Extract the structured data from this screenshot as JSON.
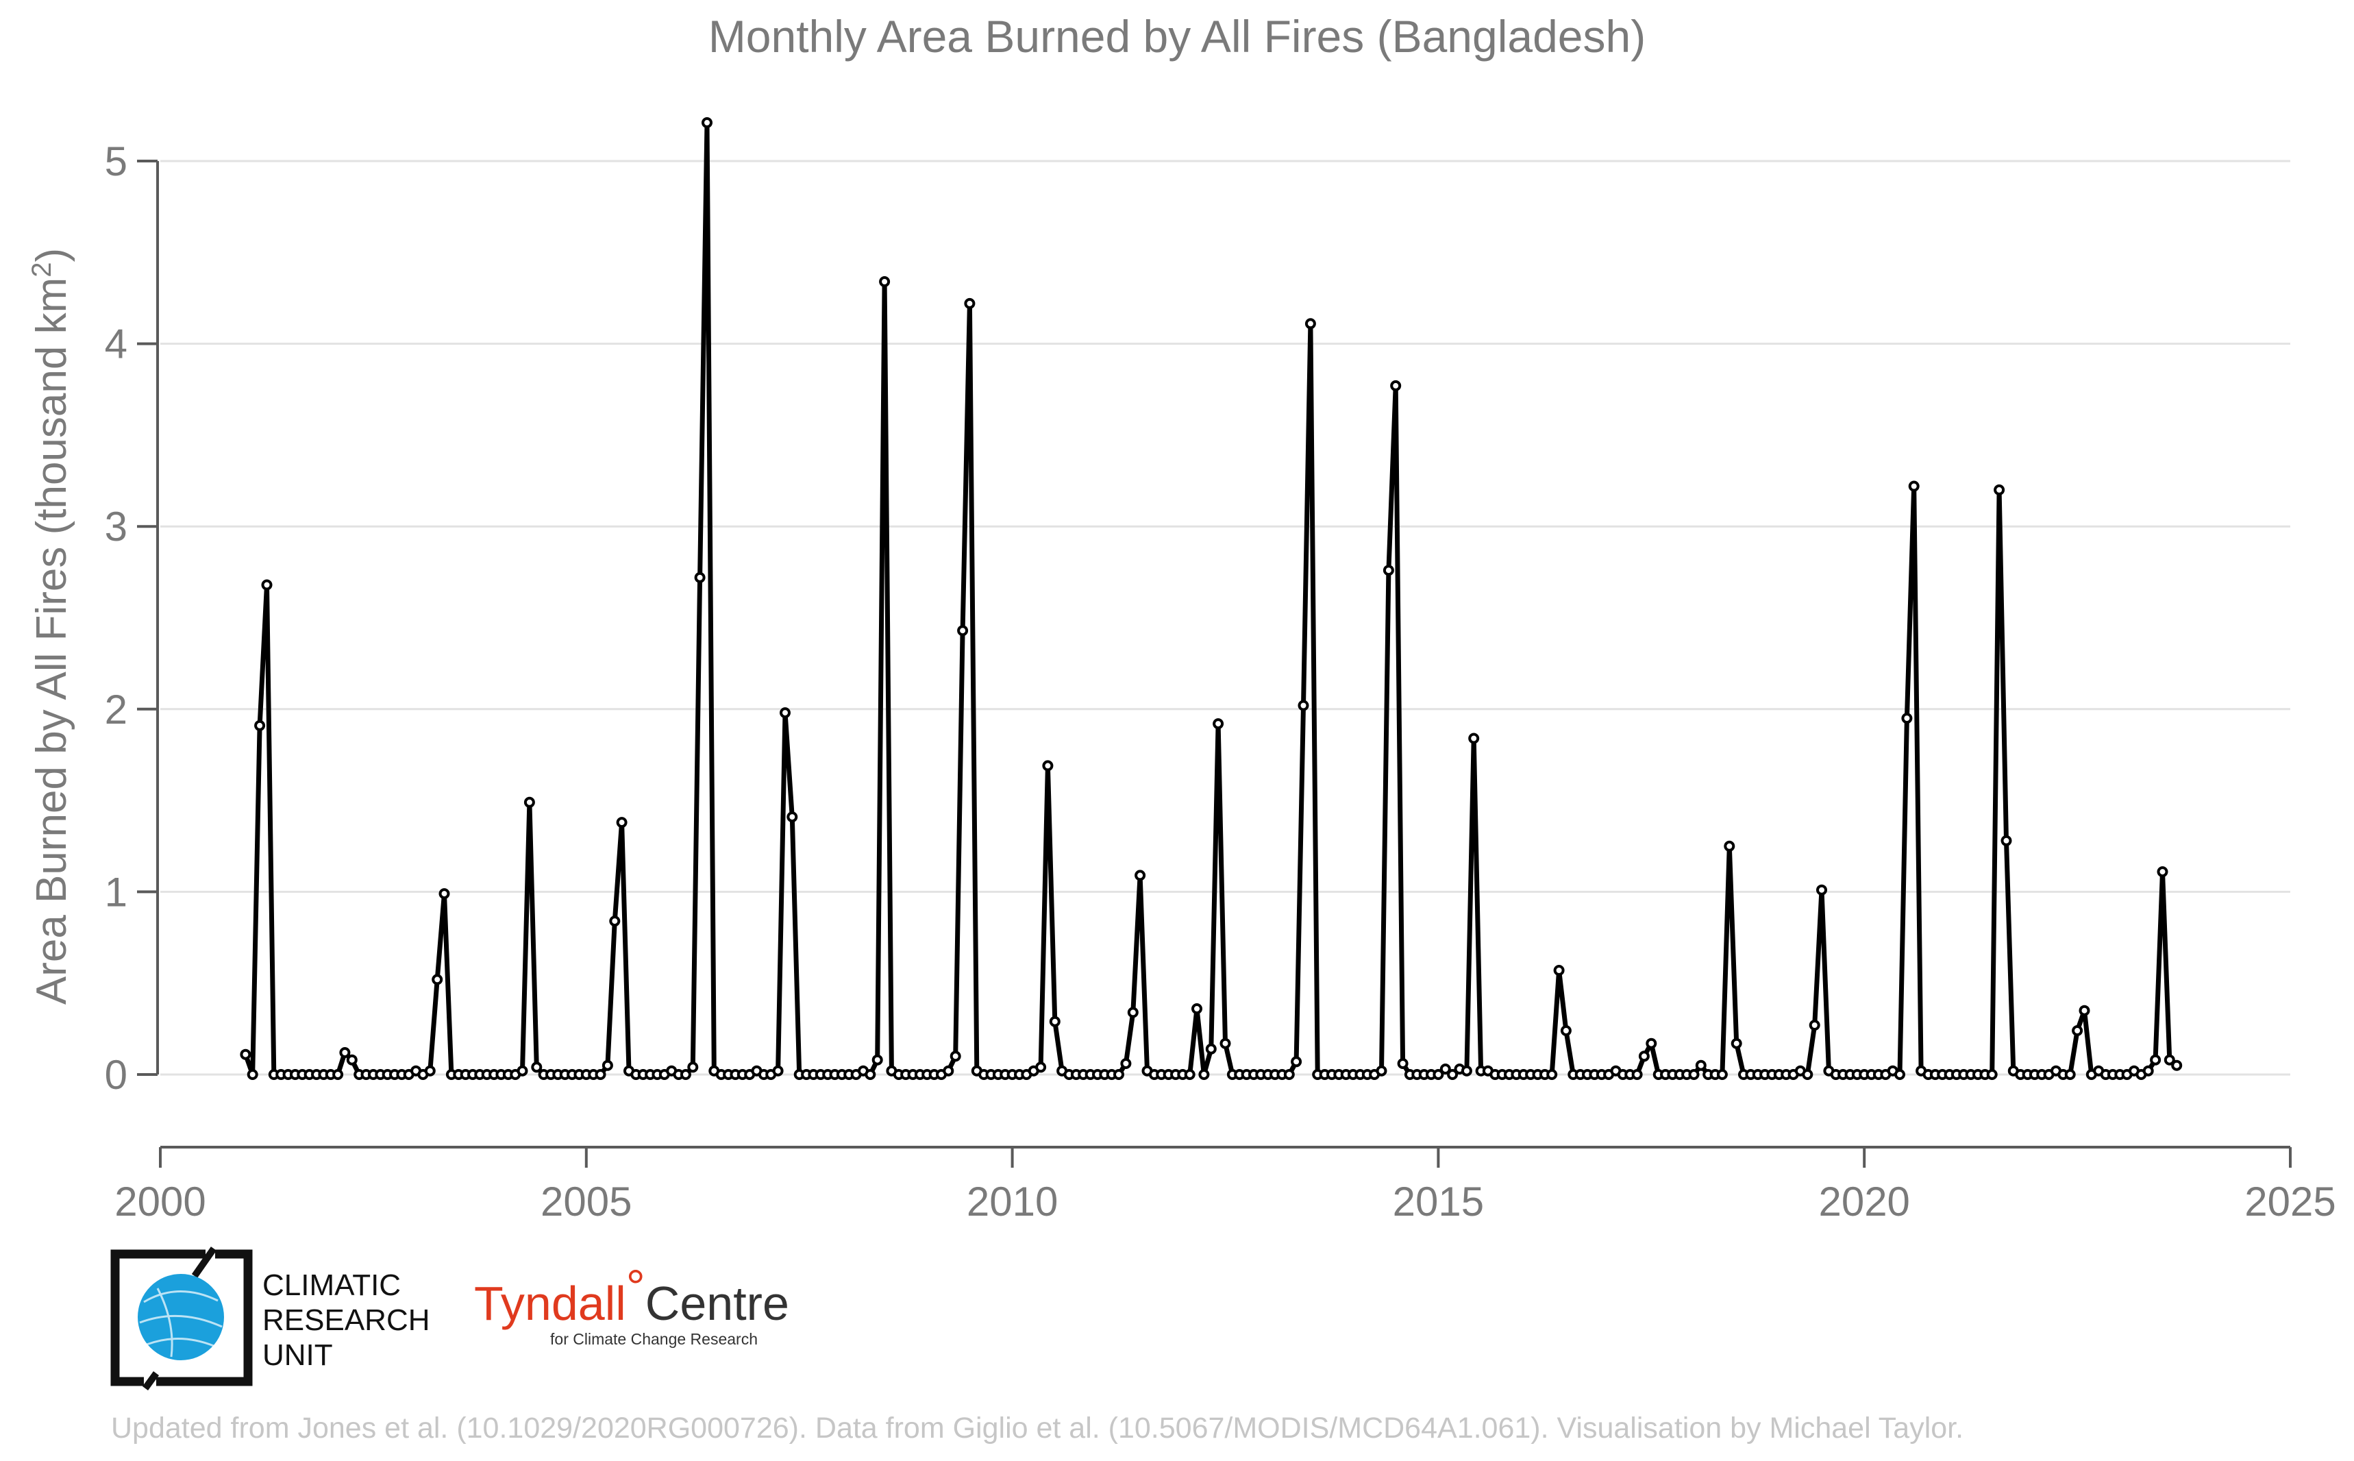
{
  "chart_data": {
    "type": "line",
    "title": "Monthly Area Burned by All Fires (Bangladesh)",
    "xlabel": "",
    "ylabel_main": "Area Burned by All Fires (thousand km",
    "ylabel_sup": "2",
    "ylabel_close": ")",
    "xlim": [
      2000,
      2025
    ],
    "ylim": [
      -0.4,
      5.2
    ],
    "x_ticks": [
      2000,
      2005,
      2010,
      2015,
      2020,
      2025
    ],
    "y_ticks": [
      0,
      1,
      2,
      3,
      4,
      5
    ],
    "grid": "horizontal",
    "marker": "open circle",
    "line_color": "#000000",
    "start": "2001-01",
    "values": [
      0.11,
      0.0,
      1.91,
      2.68,
      0.0,
      0.0,
      0.0,
      0.0,
      0.0,
      0.0,
      0.0,
      0.0,
      0.0,
      0.0,
      0.12,
      0.08,
      0.0,
      0.0,
      0.0,
      0.0,
      0.0,
      0.0,
      0.0,
      0.0,
      0.02,
      0.0,
      0.02,
      0.52,
      0.99,
      0.0,
      0.0,
      0.0,
      0.0,
      0.0,
      0.0,
      0.0,
      0.0,
      0.0,
      0.0,
      0.02,
      1.49,
      0.04,
      0.0,
      0.0,
      0.0,
      0.0,
      0.0,
      0.0,
      0.0,
      0.0,
      0.0,
      0.05,
      0.84,
      1.38,
      0.02,
      0.0,
      0.0,
      0.0,
      0.0,
      0.0,
      0.02,
      0.0,
      0.0,
      0.04,
      2.72,
      5.21,
      0.02,
      0.0,
      0.0,
      0.0,
      0.0,
      0.0,
      0.02,
      0.0,
      0.0,
      0.02,
      1.98,
      1.41,
      0.0,
      0.0,
      0.0,
      0.0,
      0.0,
      0.0,
      0.0,
      0.0,
      0.0,
      0.02,
      0.0,
      0.08,
      4.34,
      0.02,
      0.0,
      0.0,
      0.0,
      0.0,
      0.0,
      0.0,
      0.0,
      0.02,
      0.1,
      2.43,
      4.22,
      0.02,
      0.0,
      0.0,
      0.0,
      0.0,
      0.0,
      0.0,
      0.0,
      0.02,
      0.04,
      1.69,
      0.29,
      0.02,
      0.0,
      0.0,
      0.0,
      0.0,
      0.0,
      0.0,
      0.0,
      0.0,
      0.06,
      0.34,
      1.09,
      0.02,
      0.0,
      0.0,
      0.0,
      0.0,
      0.0,
      0.0,
      0.36,
      0.0,
      0.14,
      1.92,
      0.17,
      0.0,
      0.0,
      0.0,
      0.0,
      0.0,
      0.0,
      0.0,
      0.0,
      0.0,
      0.07,
      2.02,
      4.11,
      0.0,
      0.0,
      0.0,
      0.0,
      0.0,
      0.0,
      0.0,
      0.0,
      0.0,
      0.02,
      2.76,
      3.77,
      0.06,
      0.0,
      0.0,
      0.0,
      0.0,
      0.0,
      0.03,
      0.0,
      0.03,
      0.02,
      1.84,
      0.02,
      0.02,
      0.0,
      0.0,
      0.0,
      0.0,
      0.0,
      0.0,
      0.0,
      0.0,
      0.0,
      0.57,
      0.24,
      0.0,
      0.0,
      0.0,
      0.0,
      0.0,
      0.0,
      0.02,
      0.0,
      0.0,
      0.0,
      0.1,
      0.17,
      0.0,
      0.0,
      0.0,
      0.0,
      0.0,
      0.0,
      0.05,
      0.0,
      0.0,
      0.0,
      1.25,
      0.17,
      0.0,
      0.0,
      0.0,
      0.0,
      0.0,
      0.0,
      0.0,
      0.0,
      0.02,
      0.0,
      0.27,
      1.01,
      0.02,
      0.0,
      0.0,
      0.0,
      0.0,
      0.0,
      0.0,
      0.0,
      0.0,
      0.02,
      0.0,
      1.95,
      3.22,
      0.02,
      0.0,
      0.0,
      0.0,
      0.0,
      0.0,
      0.0,
      0.0,
      0.0,
      0.0,
      0.0,
      3.2,
      1.28,
      0.02,
      0.0,
      0.0,
      0.0,
      0.0,
      0.0,
      0.02,
      0.0,
      0.0,
      0.24,
      0.35,
      0.0,
      0.02,
      0.0,
      0.0,
      0.0,
      0.0,
      0.02,
      0.0,
      0.02,
      0.08,
      1.11,
      0.08,
      0.05
    ]
  },
  "logos": {
    "cru_line1": "CLIMATIC",
    "cru_line2": "RESEARCH",
    "cru_line3": "UNIT",
    "tyndall_name": "Tyndall",
    "tyndall_degree": "°",
    "tyndall_centre": "Centre",
    "tyndall_sub": "for Climate Change Research"
  },
  "credit": "Updated from Jones et al. (10.1029/2020RG000726). Data from Giglio et al. (10.5067/MODIS/MCD64A1.061). Visualisation by Michael Taylor."
}
